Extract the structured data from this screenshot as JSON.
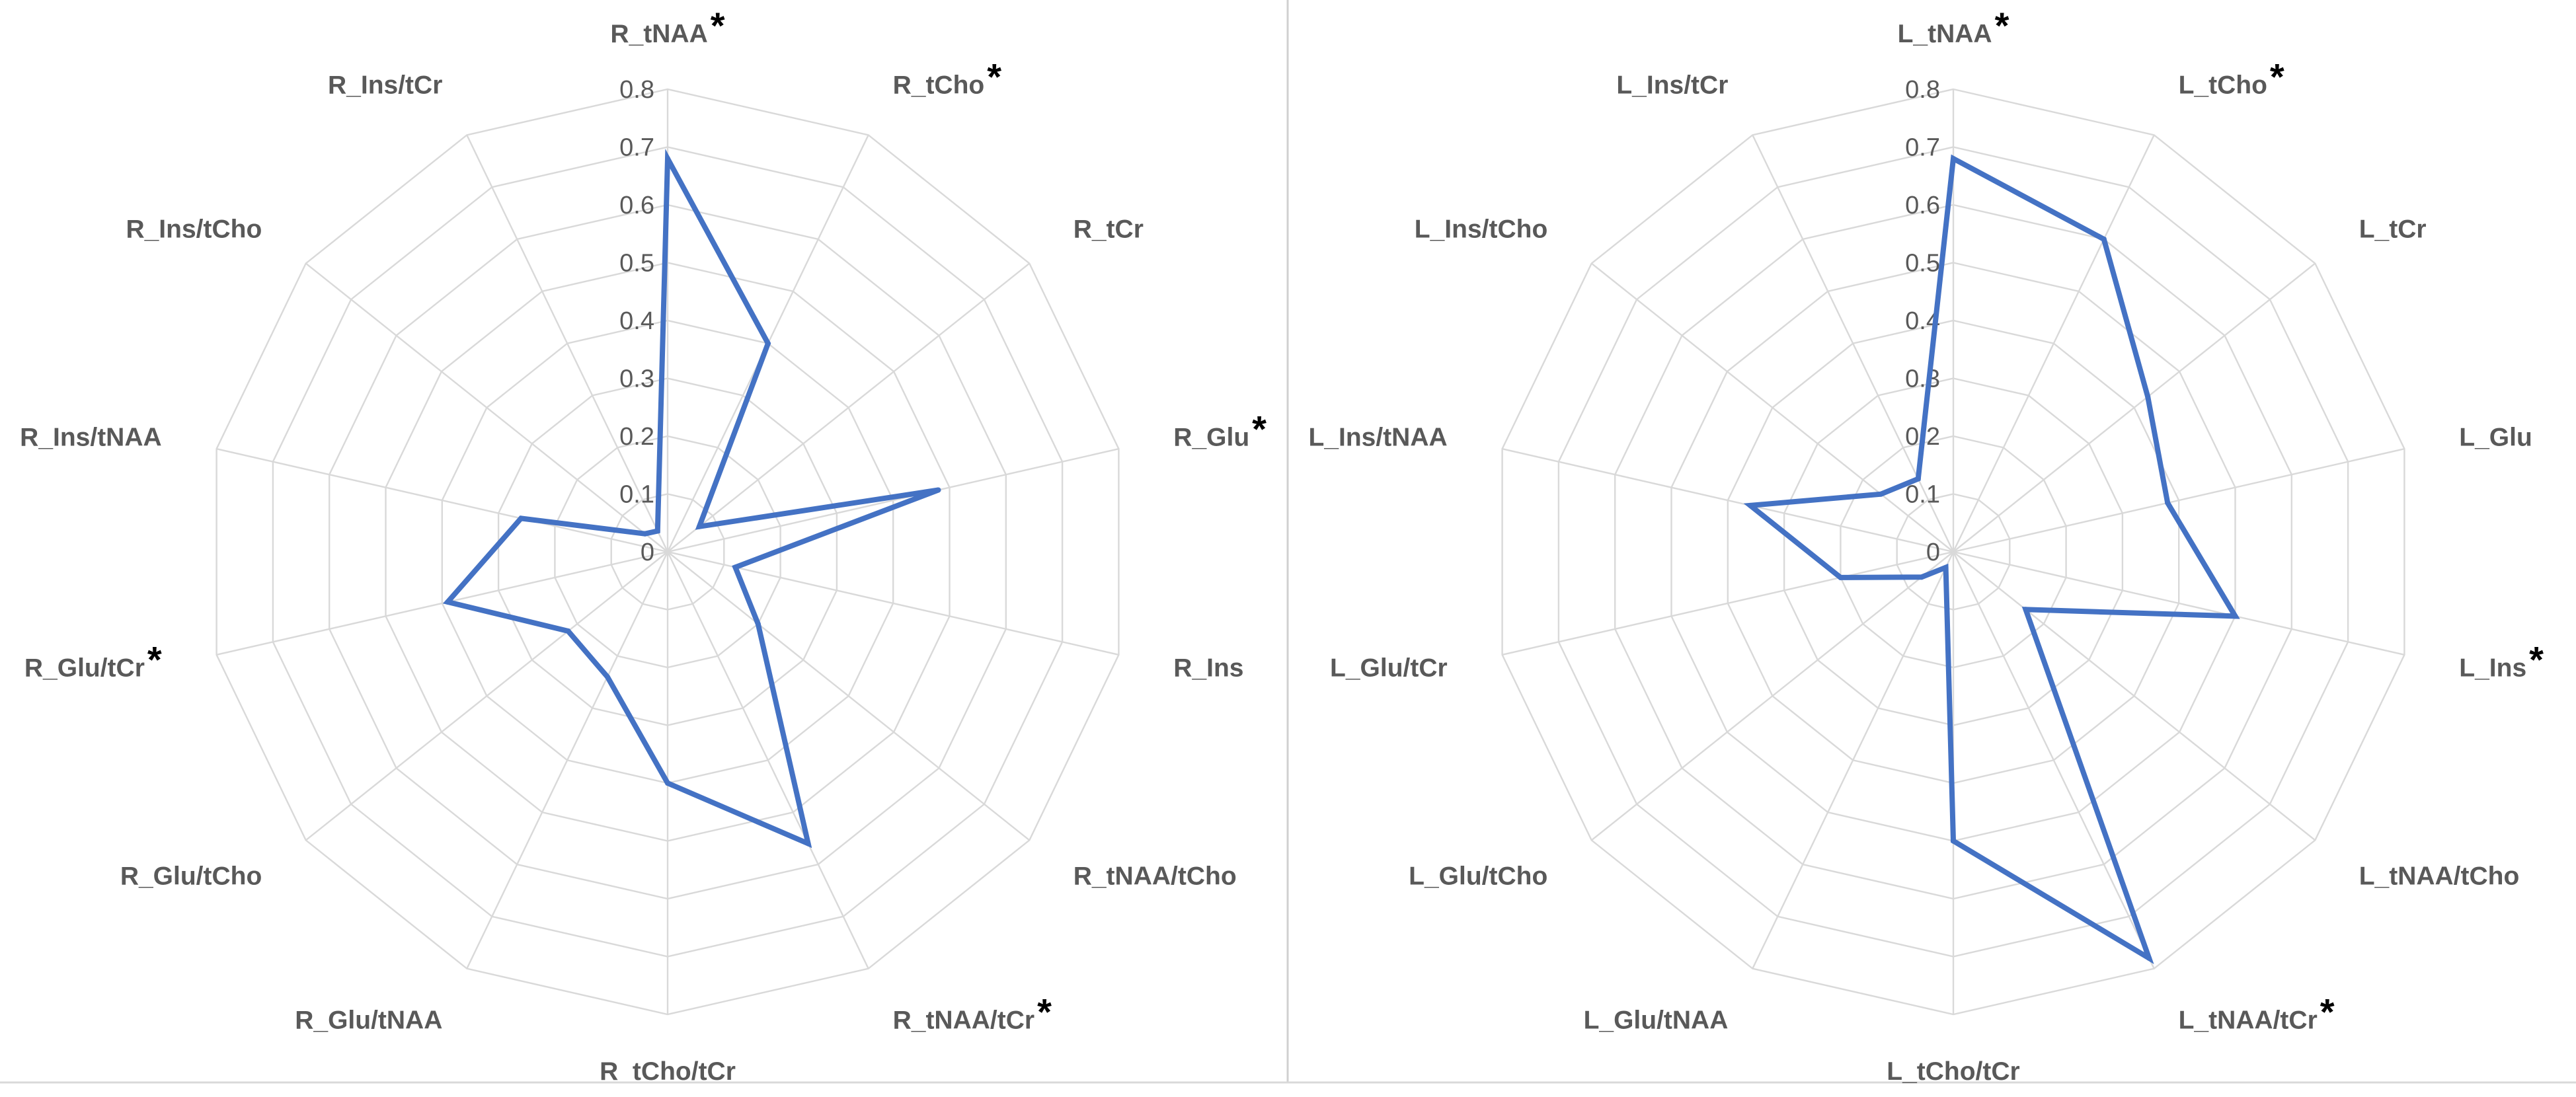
{
  "chart_data": [
    {
      "type": "radar",
      "categories": [
        "R_tNAA",
        "R_tCho",
        "R_tCr",
        "R_Glu",
        "R_Ins",
        "R_tNAA/tCho",
        "R_tNAA/tCr",
        "R_tCho/tCr",
        "R_Glu/tNAA",
        "R_Glu/tCho",
        "R_Glu/tCr",
        "R_Ins/tNAA",
        "R_Ins/tCho",
        "R_Ins/tCr"
      ],
      "significant": [
        true,
        true,
        false,
        true,
        false,
        false,
        true,
        false,
        false,
        false,
        true,
        false,
        false,
        false
      ],
      "series": [
        {
          "values": [
            0.68,
            0.4,
            0.07,
            0.48,
            0.12,
            0.2,
            0.56,
            0.4,
            0.24,
            0.22,
            0.39,
            0.26,
            0.05,
            0.04
          ]
        }
      ],
      "ticks": [
        "0",
        "0.1",
        "0.2",
        "0.3",
        "0.4",
        "0.5",
        "0.6",
        "0.7",
        "0.8"
      ],
      "rlim": [
        0,
        0.8
      ]
    },
    {
      "type": "radar",
      "categories": [
        "L_tNAA",
        "L_tCho",
        "L_tCr",
        "L_Glu",
        "L_Ins",
        "L_tNAA/tCho",
        "L_tNAA/tCr",
        "L_tCho/tCr",
        "L_Glu/tNAA",
        "L_Glu/tCho",
        "L_Glu/tCr",
        "L_Ins/tNAA",
        "L_Ins/tCho",
        "L_Ins/tCr"
      ],
      "significant": [
        true,
        true,
        false,
        false,
        true,
        false,
        true,
        false,
        false,
        false,
        false,
        false,
        false,
        false
      ],
      "series": [
        {
          "values": [
            0.68,
            0.6,
            0.43,
            0.38,
            0.5,
            0.16,
            0.78,
            0.5,
            0.03,
            0.07,
            0.2,
            0.36,
            0.16,
            0.14
          ]
        }
      ],
      "ticks": [
        "0",
        "0.1",
        "0.2",
        "0.3",
        "0.4",
        "0.5",
        "0.6",
        "0.7",
        "0.8"
      ],
      "rlim": [
        0,
        0.8
      ]
    }
  ],
  "colors": {
    "series": "#4472c4",
    "grid": "#d9d9d9",
    "label": "#595959",
    "star": "#000000"
  },
  "significance_mark": "*"
}
